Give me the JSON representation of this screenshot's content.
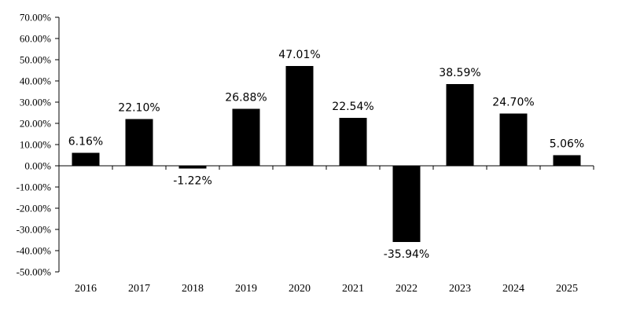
{
  "chart_data": {
    "type": "bar",
    "title": "",
    "xlabel": "",
    "ylabel": "",
    "categories": [
      "2016",
      "2017",
      "2018",
      "2019",
      "2020",
      "2021",
      "2022",
      "2023",
      "2024",
      "2025"
    ],
    "values": [
      6.16,
      22.1,
      -1.22,
      26.88,
      47.01,
      22.54,
      -35.94,
      38.59,
      24.7,
      5.06
    ],
    "data_labels": [
      "6.16%",
      "22.10%",
      "-1.22%",
      "26.88%",
      "47.01%",
      "22.54%",
      "-35.94%",
      "38.59%",
      "24.70%",
      "5.06%"
    ],
    "ylim": [
      -50,
      70
    ],
    "y_ticks": [
      70,
      60,
      50,
      40,
      30,
      20,
      10,
      0,
      -10,
      -20,
      -30,
      -40,
      -50
    ],
    "y_tick_labels": [
      "70.00%",
      "60.00%",
      "50.00%",
      "40.00%",
      "30.00%",
      "20.00%",
      "10.00%",
      "0.00%",
      "-10.00%",
      "-20.00%",
      "-30.00%",
      "-40.00%",
      "-50.00%"
    ],
    "bar_color": "#000000",
    "grid": false,
    "legend": "none"
  }
}
